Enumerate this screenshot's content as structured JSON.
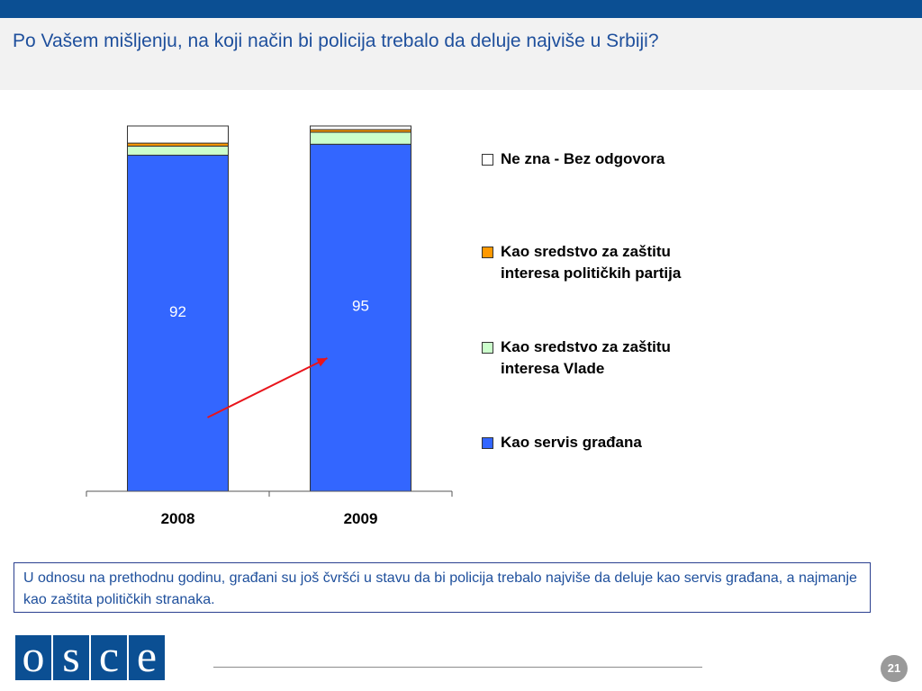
{
  "header": {
    "title": "Po Vašem mišljenju, na koji način bi policija trebalo da deluje najviše u Srbiji?"
  },
  "chart_data": {
    "type": "bar",
    "stacked": true,
    "categories": [
      "2008",
      "2009"
    ],
    "series": [
      {
        "name": "Kao servis građana",
        "color": "#3366ff",
        "values": [
          92,
          95
        ],
        "show_labels": true
      },
      {
        "name": "Kao sredstvo za zaštitu interesa Vlade",
        "color": "#ccffcc",
        "values": [
          2.5,
          3.3
        ],
        "show_labels": false
      },
      {
        "name": "Kao sredstvo za zaštitu interesa političkih partija",
        "color": "#ff9900",
        "values": [
          0.8,
          0.7
        ],
        "show_labels": false
      },
      {
        "name": "Ne zna - Bez odgovora",
        "color": "#ffffff",
        "values": [
          4.7,
          1.0
        ],
        "show_labels": false
      }
    ],
    "ylim": [
      0,
      100
    ],
    "legend_order": [
      "Ne zna - Bez odgovora",
      "Kao sredstvo za zaštitu interesa političkih partija",
      "Kao sredstvo za zaštitu interesa Vlade",
      "Kao servis građana"
    ],
    "legend_position": "right",
    "annotation": {
      "type": "arrow",
      "color": "#e8141b",
      "from": "2008",
      "to": "2009"
    },
    "grid": false
  },
  "note": {
    "text": "U odnosu na prethodnu godinu, građani su još čvršći u stavu da bi policija trebalo najviše da deluje kao servis građana, a najmanje kao zaštita političkih stranaka."
  },
  "footer": {
    "logo_letters": [
      "o",
      "s",
      "c",
      "e"
    ],
    "page_number": "21"
  }
}
